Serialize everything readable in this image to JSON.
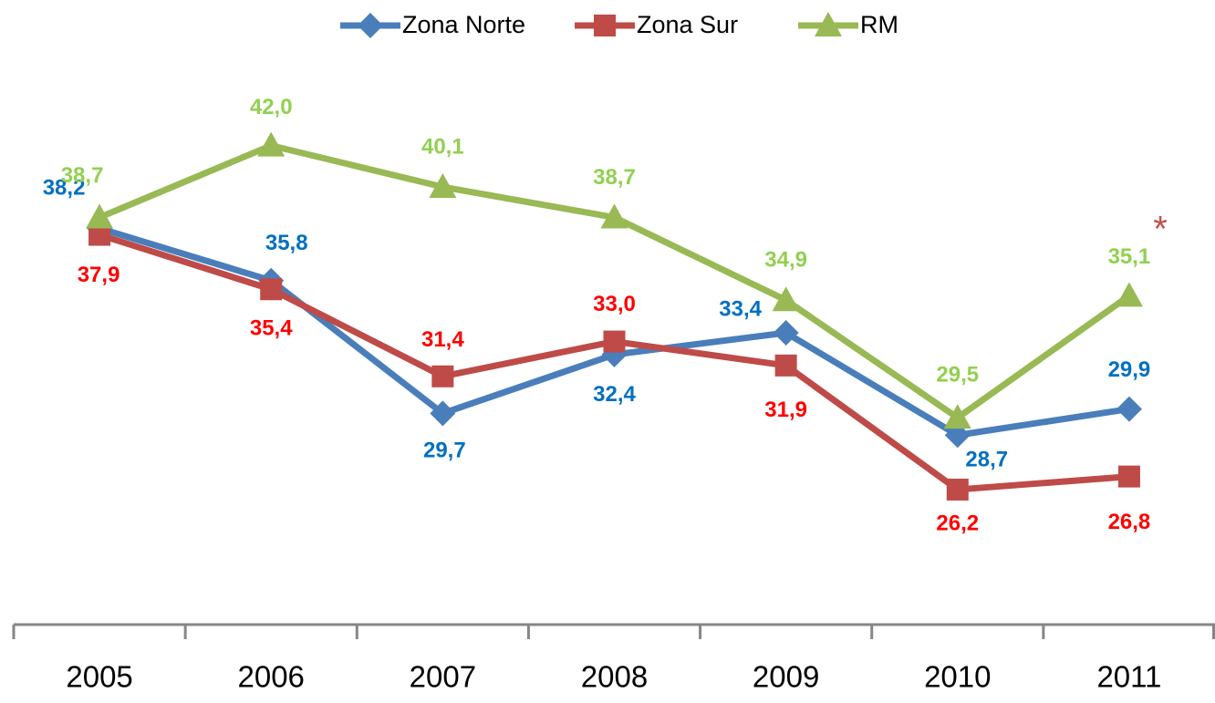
{
  "chart_data": {
    "type": "line",
    "categories": [
      "2005",
      "2006",
      "2007",
      "2008",
      "2009",
      "2010",
      "2011"
    ],
    "series": [
      {
        "name": "Zona Norte",
        "color": "#4a7ebb",
        "label_color": "#0070c0",
        "marker": "diamond",
        "values": [
          38.2,
          35.8,
          29.7,
          32.4,
          33.4,
          28.7,
          29.9
        ],
        "value_labels": [
          "38,2",
          "35,8",
          "29,7",
          "32,4",
          "33,4",
          "28,7",
          "29,9"
        ]
      },
      {
        "name": "Zona Sur",
        "color": "#be4b48",
        "label_color": "#ff0000",
        "marker": "square",
        "values": [
          37.9,
          35.4,
          31.4,
          33.0,
          31.9,
          26.2,
          26.8
        ],
        "value_labels": [
          "37,9",
          "35,4",
          "31,4",
          "33,0",
          "31,9",
          "26,2",
          "26,8"
        ]
      },
      {
        "name": "RM",
        "color": "#98b954",
        "label_color": "#92d050",
        "marker": "triangle",
        "values": [
          38.7,
          42.0,
          40.1,
          38.7,
          34.9,
          29.5,
          35.1
        ],
        "value_labels": [
          "38,7",
          "42,0",
          "40,1",
          "38,7",
          "34,9",
          "29,5",
          "35,1"
        ]
      }
    ],
    "annotations": [
      "*"
    ],
    "ylim": [
      20,
      45
    ],
    "legend": "top"
  }
}
